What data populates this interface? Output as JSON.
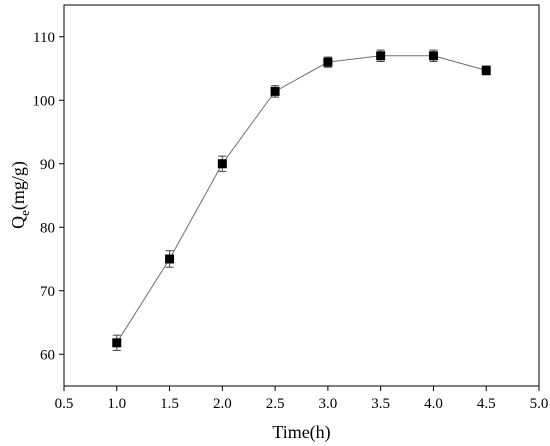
{
  "chart_data": {
    "type": "scatter",
    "series": [
      {
        "x": [
          1.0,
          1.5,
          2.0,
          2.5,
          3.0,
          3.5,
          4.0,
          4.5
        ],
        "y": [
          61.8,
          75.0,
          90.0,
          101.4,
          106.0,
          107.0,
          107.0,
          104.7
        ],
        "error": [
          1.2,
          1.3,
          1.2,
          0.9,
          0.8,
          0.9,
          0.9,
          0.7
        ],
        "marker": "square",
        "connected": true,
        "line_color": "#6e6e6e",
        "marker_color": "#000000"
      }
    ],
    "xlabel": "Time(h)",
    "ylabel_main": "Q",
    "ylabel_sub": "e",
    "ylabel_unit": "(mg/g)",
    "xlim": [
      0.5,
      5.0
    ],
    "ylim": [
      55,
      115
    ],
    "xticks": [
      "0.5",
      "1.0",
      "1.5",
      "2.0",
      "2.5",
      "3.0",
      "3.5",
      "4.0",
      "4.5",
      "5.0"
    ],
    "yticks": [
      "60",
      "70",
      "80",
      "90",
      "100",
      "110"
    ],
    "grid": false,
    "legend": "none"
  }
}
